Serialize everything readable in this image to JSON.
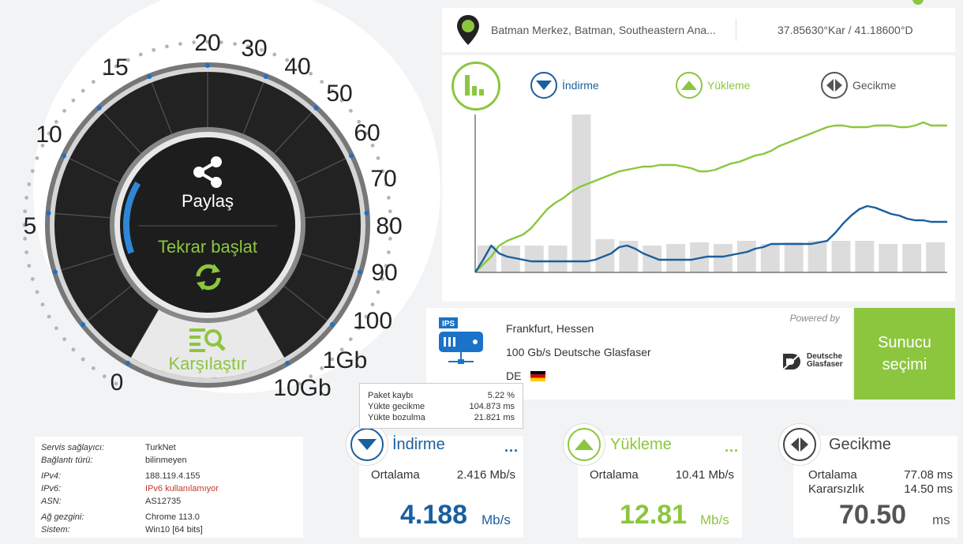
{
  "location": {
    "city": "Batman Merkez, Batman, Southeastern Ana...",
    "coords": "37.85630°Kar / 41.18600°D"
  },
  "gauge": {
    "scale_labels": [
      "0",
      "5",
      "10",
      "15",
      "20",
      "30",
      "40",
      "50",
      "60",
      "70",
      "80",
      "90",
      "100",
      "1Gb",
      "10Gb"
    ],
    "share_label": "Paylaş",
    "restart_label": "Tekrar başlat",
    "compare_label": "Karşılaştır",
    "progress_fraction": 0.17
  },
  "chart": {
    "legend": {
      "download": "İndirme",
      "upload": "Yükleme",
      "latency": "Gecikme"
    },
    "colors": {
      "download": "#1a5f9e",
      "upload": "#8cc63f",
      "latency_bars": "#dcdcdc",
      "latency_icon": "#555555"
    }
  },
  "chart_data": {
    "type": "line",
    "x": [
      0,
      1,
      2,
      3,
      4,
      5,
      6,
      7,
      8,
      9,
      10,
      11,
      12,
      13,
      14,
      15,
      16,
      17,
      18,
      19,
      20,
      21,
      22,
      23,
      24,
      25,
      26,
      27,
      28,
      29,
      30,
      31,
      32,
      33,
      34,
      35,
      36,
      37,
      38,
      39,
      40,
      41,
      42,
      43,
      44,
      45,
      46,
      47,
      48,
      49,
      50,
      51,
      52,
      53,
      54,
      55,
      56,
      57,
      58,
      59
    ],
    "series": [
      {
        "name": "İndirme",
        "color": "#1a5f9e",
        "values": [
          0.0,
          0.08,
          0.17,
          0.12,
          0.1,
          0.09,
          0.08,
          0.07,
          0.07,
          0.07,
          0.07,
          0.07,
          0.07,
          0.07,
          0.07,
          0.08,
          0.1,
          0.12,
          0.16,
          0.17,
          0.15,
          0.12,
          0.1,
          0.08,
          0.08,
          0.08,
          0.08,
          0.08,
          0.09,
          0.1,
          0.1,
          0.1,
          0.11,
          0.12,
          0.13,
          0.15,
          0.16,
          0.18,
          0.18,
          0.18,
          0.18,
          0.18,
          0.18,
          0.19,
          0.2,
          0.25,
          0.31,
          0.36,
          0.4,
          0.42,
          0.41,
          0.39,
          0.37,
          0.36,
          0.34,
          0.33,
          0.33,
          0.32,
          0.32,
          0.32
        ]
      },
      {
        "name": "Yükleme",
        "color": "#8cc63f",
        "values": [
          0.0,
          0.05,
          0.1,
          0.17,
          0.2,
          0.22,
          0.24,
          0.28,
          0.34,
          0.4,
          0.44,
          0.47,
          0.51,
          0.54,
          0.56,
          0.58,
          0.6,
          0.62,
          0.64,
          0.65,
          0.66,
          0.67,
          0.67,
          0.68,
          0.68,
          0.68,
          0.67,
          0.66,
          0.64,
          0.64,
          0.65,
          0.67,
          0.69,
          0.7,
          0.72,
          0.74,
          0.75,
          0.77,
          0.8,
          0.82,
          0.84,
          0.86,
          0.88,
          0.9,
          0.92,
          0.93,
          0.93,
          0.92,
          0.92,
          0.92,
          0.93,
          0.93,
          0.93,
          0.92,
          0.92,
          0.93,
          0.95,
          0.93,
          0.93,
          0.93
        ]
      }
    ],
    "bars": [
      0.17,
      0.17,
      0.17,
      0.17,
      1.0,
      0.21,
      0.2,
      0.17,
      0.18,
      0.19,
      0.18,
      0.2,
      0.18,
      0.19,
      0.2,
      0.2,
      0.2,
      0.18,
      0.18,
      0.19
    ],
    "xlabel": "",
    "ylabel": "",
    "grid": false
  },
  "server": {
    "location": "Frankfurt, Hessen",
    "provider": "100 Gb/s Deutsche Glasfaser",
    "country": "DE",
    "powered_by": "Powered by",
    "logo_name": "Deutsche Glasfaser",
    "ips_label": "IPS",
    "select_label": "Sunucu seçimi"
  },
  "tooltip": {
    "rows": [
      {
        "label": "Paket kaybı",
        "value": "5.22 %"
      },
      {
        "label": "Yükte gecikme",
        "value": "104.873 ms"
      },
      {
        "label": "Yükte bozulma",
        "value": "21.821 ms"
      }
    ]
  },
  "info": {
    "isp_label": "Servis sağlayıcı:",
    "isp": "TurkNet",
    "conn_label": "Bağlantı türü:",
    "conn": "bilinmeyen",
    "ipv4_label": "IPv4:",
    "ipv4": "188.119.4.155",
    "ipv6_label": "IPv6:",
    "ipv6": "IPv6 kullanılamıyor",
    "asn_label": "ASN:",
    "asn": "AS12735",
    "browser_label": "Ağ gezgini:",
    "browser": "Chrome 113.0",
    "system_label": "Sistem:",
    "system": "Win10 [64 bits]"
  },
  "results": {
    "download": {
      "title": "İndirme",
      "dots": "...",
      "avg_label": "Ortalama",
      "avg": "2.416 Mb/s",
      "value": "4.188",
      "unit": "Mb/s",
      "color": "#1a5f9e"
    },
    "upload": {
      "title": "Yükleme",
      "dots": "...",
      "avg_label": "Ortalama",
      "avg": "10.41 Mb/s",
      "value": "12.81",
      "unit": "Mb/s",
      "color": "#8cc63f"
    },
    "latency": {
      "title": "Gecikme",
      "avg_label": "Ortalama",
      "avg": "77.08 ms",
      "jitter_label": "Kararsızlık",
      "jitter": "14.50 ms",
      "value": "70.50",
      "unit": "ms",
      "color": "#444444"
    }
  }
}
